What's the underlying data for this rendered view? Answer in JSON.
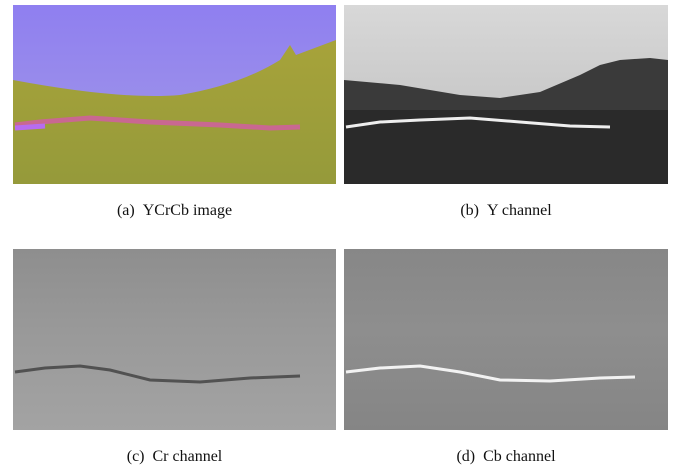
{
  "figure": {
    "panels": [
      {
        "label": "(a)",
        "caption": "YCrCb image"
      },
      {
        "label": "(b)",
        "caption": "Y channel"
      },
      {
        "label": "(c)",
        "caption": "Cr channel"
      },
      {
        "label": "(d)",
        "caption": "Cb channel"
      }
    ]
  }
}
